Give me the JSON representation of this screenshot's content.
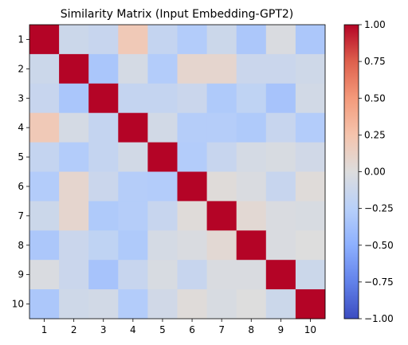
{
  "chart_data": {
    "type": "heatmap",
    "title": "Similarity Matrix (Input Embedding-GPT2)",
    "xlabel": "",
    "ylabel": "",
    "x_labels": [
      "1",
      "2",
      "3",
      "4",
      "5",
      "6",
      "7",
      "8",
      "9",
      "10"
    ],
    "y_labels": [
      "1",
      "2",
      "3",
      "4",
      "5",
      "6",
      "7",
      "8",
      "9",
      "10"
    ],
    "colormap": "coolwarm",
    "vmin": -1.0,
    "vmax": 1.0,
    "colorbar_ticks": [
      {
        "value": 1.0,
        "label": "1.00"
      },
      {
        "value": 0.75,
        "label": "0.75"
      },
      {
        "value": 0.5,
        "label": "0.50"
      },
      {
        "value": 0.25,
        "label": "0.25"
      },
      {
        "value": 0.0,
        "label": "0.00"
      },
      {
        "value": -0.25,
        "label": "−0.25"
      },
      {
        "value": -0.5,
        "label": "−0.50"
      },
      {
        "value": -0.75,
        "label": "−0.75"
      },
      {
        "value": -1.0,
        "label": "−1.00"
      }
    ],
    "values": [
      [
        1.0,
        -0.12,
        -0.15,
        0.2,
        -0.17,
        -0.28,
        -0.12,
        -0.32,
        -0.03,
        -0.32
      ],
      [
        -0.12,
        1.0,
        -0.33,
        -0.06,
        -0.28,
        0.08,
        0.08,
        -0.13,
        -0.13,
        -0.1
      ],
      [
        -0.15,
        -0.33,
        1.0,
        -0.17,
        -0.17,
        -0.13,
        -0.3,
        -0.2,
        -0.35,
        -0.08
      ],
      [
        0.2,
        -0.06,
        -0.17,
        1.0,
        -0.08,
        -0.27,
        -0.27,
        -0.3,
        -0.15,
        -0.28
      ],
      [
        -0.17,
        -0.28,
        -0.17,
        -0.08,
        1.0,
        -0.28,
        -0.15,
        -0.06,
        -0.04,
        -0.09
      ],
      [
        -0.28,
        0.08,
        -0.13,
        -0.27,
        -0.28,
        1.0,
        0.02,
        -0.03,
        -0.15,
        0.02
      ],
      [
        -0.12,
        0.08,
        -0.3,
        -0.27,
        -0.15,
        0.02,
        1.0,
        0.05,
        -0.03,
        -0.04
      ],
      [
        -0.32,
        -0.13,
        -0.2,
        -0.3,
        -0.06,
        -0.03,
        0.05,
        1.0,
        -0.03,
        0.0
      ],
      [
        -0.03,
        -0.13,
        -0.35,
        -0.15,
        -0.04,
        -0.15,
        -0.03,
        -0.03,
        1.0,
        -0.12
      ],
      [
        -0.32,
        -0.1,
        -0.08,
        -0.28,
        -0.09,
        0.02,
        -0.04,
        0.0,
        -0.12,
        1.0
      ]
    ]
  }
}
